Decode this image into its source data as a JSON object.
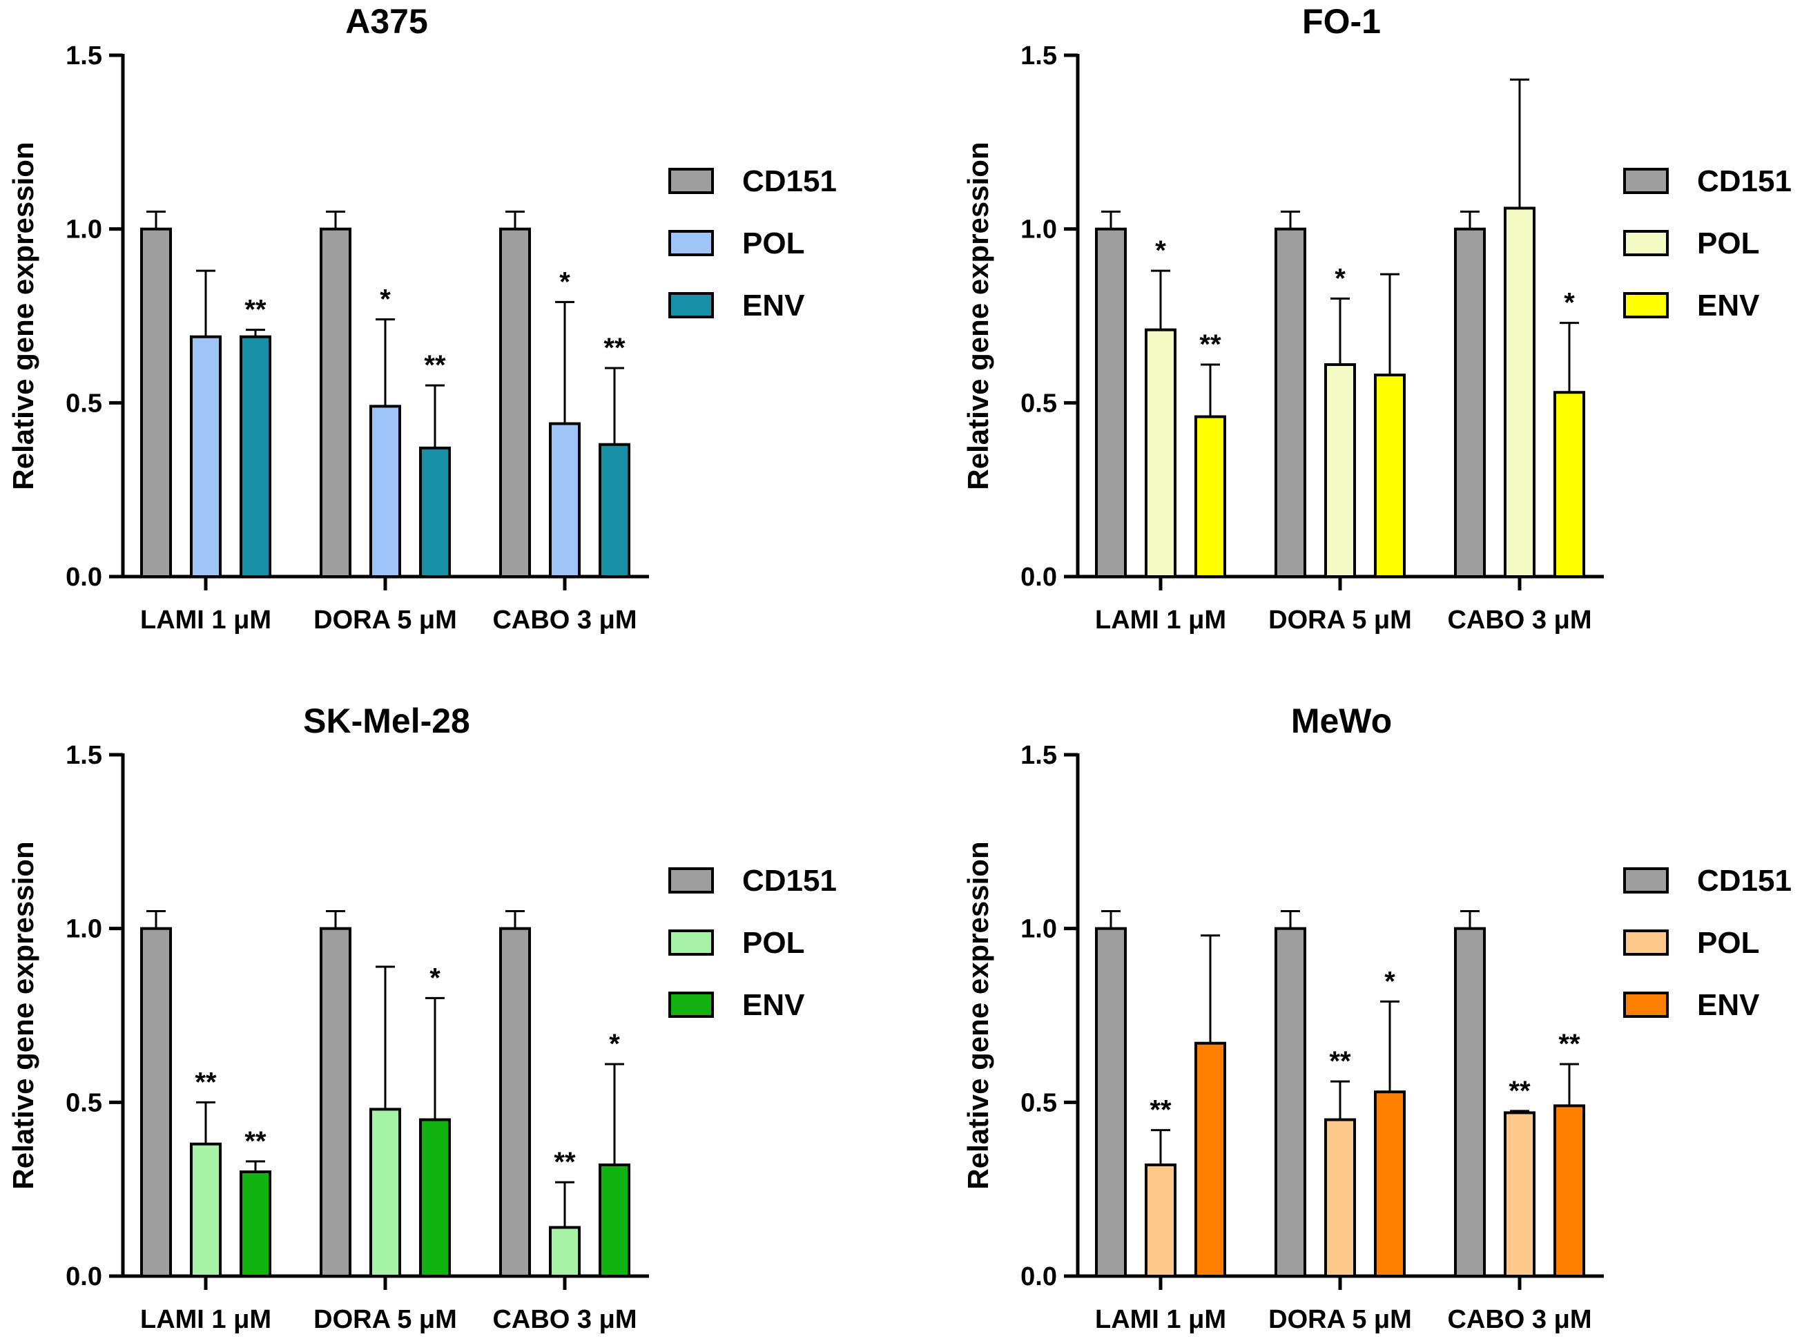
{
  "chart_data": [
    {
      "type": "bar",
      "title": "A375",
      "ylabel": "Relative gene expression",
      "xlabel": "",
      "ylim": [
        0,
        1.5
      ],
      "yticks": [
        "0.0",
        "0.5",
        "1.0",
        "1.5"
      ],
      "categories": [
        "LAMI 1 μM",
        "DORA 5 μM",
        "CABO 3 μM"
      ],
      "legend_position": "right",
      "series": [
        {
          "name": "CD151",
          "color": "#9e9e9e",
          "values": [
            1.0,
            1.0,
            1.0
          ],
          "errors": [
            0.05,
            0.05,
            0.05
          ],
          "sig": [
            "",
            "",
            ""
          ]
        },
        {
          "name": "POL",
          "color": "#9fc5f8",
          "values": [
            0.69,
            0.49,
            0.44
          ],
          "errors": [
            0.19,
            0.25,
            0.35
          ],
          "sig": [
            "",
            "*",
            "*"
          ]
        },
        {
          "name": "ENV",
          "color": "#1890a5",
          "values": [
            0.69,
            0.37,
            0.38
          ],
          "errors": [
            0.02,
            0.18,
            0.22
          ],
          "sig": [
            "**",
            "**",
            "**"
          ]
        }
      ]
    },
    {
      "type": "bar",
      "title": "FO-1",
      "ylabel": "Relative gene expression",
      "xlabel": "",
      "ylim": [
        0,
        1.5
      ],
      "yticks": [
        "0.0",
        "0.5",
        "1.0",
        "1.5"
      ],
      "categories": [
        "LAMI 1 μM",
        "DORA 5 μM",
        "CABO 3 μM"
      ],
      "legend_position": "right",
      "series": [
        {
          "name": "CD151",
          "color": "#9e9e9e",
          "values": [
            1.0,
            1.0,
            1.0
          ],
          "errors": [
            0.05,
            0.05,
            0.05
          ],
          "sig": [
            "",
            "",
            ""
          ]
        },
        {
          "name": "POL",
          "color": "#f4fbc4",
          "values": [
            0.71,
            0.61,
            1.06
          ],
          "errors": [
            0.17,
            0.19,
            0.37
          ],
          "sig": [
            "*",
            "*",
            ""
          ]
        },
        {
          "name": "ENV",
          "color": "#ffff00",
          "values": [
            0.46,
            0.58,
            0.53
          ],
          "errors": [
            0.15,
            0.29,
            0.2
          ],
          "sig": [
            "**",
            "",
            "*"
          ]
        }
      ]
    },
    {
      "type": "bar",
      "title": "SK-Mel-28",
      "ylabel": "Relative gene expression",
      "xlabel": "",
      "ylim": [
        0,
        1.5
      ],
      "yticks": [
        "0.0",
        "0.5",
        "1.0",
        "1.5"
      ],
      "categories": [
        "LAMI 1 μM",
        "DORA 5 μM",
        "CABO 3 μM"
      ],
      "legend_position": "right",
      "series": [
        {
          "name": "CD151",
          "color": "#9e9e9e",
          "values": [
            1.0,
            1.0,
            1.0
          ],
          "errors": [
            0.05,
            0.05,
            0.05
          ],
          "sig": [
            "",
            "",
            ""
          ]
        },
        {
          "name": "POL",
          "color": "#a6f2a6",
          "values": [
            0.38,
            0.48,
            0.14
          ],
          "errors": [
            0.12,
            0.41,
            0.13
          ],
          "sig": [
            "**",
            "",
            "**"
          ]
        },
        {
          "name": "ENV",
          "color": "#11b311",
          "values": [
            0.3,
            0.45,
            0.32
          ],
          "errors": [
            0.03,
            0.35,
            0.29
          ],
          "sig": [
            "**",
            "*",
            "*"
          ]
        }
      ]
    },
    {
      "type": "bar",
      "title": "MeWo",
      "ylabel": "Relative gene expression",
      "xlabel": "",
      "ylim": [
        0,
        1.5
      ],
      "yticks": [
        "0.0",
        "0.5",
        "1.0",
        "1.5"
      ],
      "categories": [
        "LAMI 1 μM",
        "DORA 5 μM",
        "CABO 3 μM"
      ],
      "legend_position": "right",
      "series": [
        {
          "name": "CD151",
          "color": "#9e9e9e",
          "values": [
            1.0,
            1.0,
            1.0
          ],
          "errors": [
            0.05,
            0.05,
            0.05
          ],
          "sig": [
            "",
            "",
            ""
          ]
        },
        {
          "name": "POL",
          "color": "#fcc98a",
          "values": [
            0.32,
            0.45,
            0.47
          ],
          "errors": [
            0.1,
            0.11,
            0.005
          ],
          "sig": [
            "**",
            "**",
            "**"
          ]
        },
        {
          "name": "ENV",
          "color": "#ff8000",
          "values": [
            0.67,
            0.53,
            0.49
          ],
          "errors": [
            0.31,
            0.26,
            0.12
          ],
          "sig": [
            "",
            "*",
            "**"
          ]
        }
      ]
    }
  ]
}
